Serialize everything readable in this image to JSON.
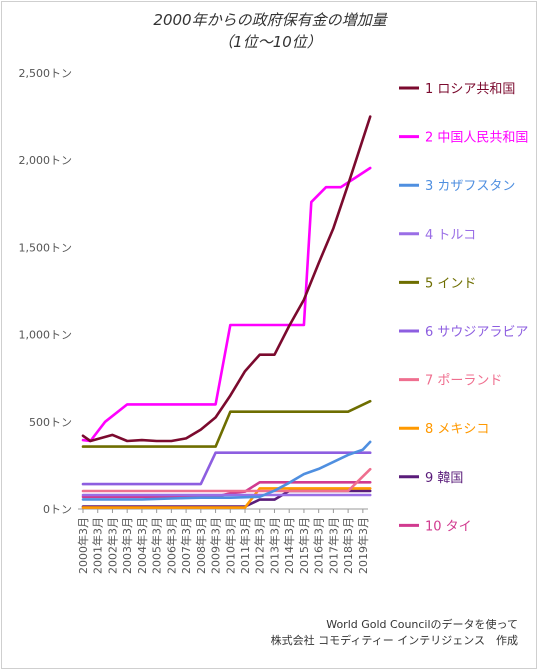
{
  "title_line1": "2000年からの政府保有金の増加量",
  "title_line2": "（1位～10位）",
  "credit_line1": "World Gold Councilのデータを使って",
  "credit_line2": "株式会社 コモディティー インテリジェンス　作成",
  "chart_data": {
    "type": "line",
    "title": "2000年からの政府保有金の増加量（1位～10位）",
    "ylim": [
      0,
      2500
    ],
    "y_ticks": [
      {
        "value": 0,
        "label": "0トン"
      },
      {
        "value": 500,
        "label": "500トン"
      },
      {
        "value": 1000,
        "label": "1,000トン"
      },
      {
        "value": 1500,
        "label": "1,500トン"
      },
      {
        "value": 2000,
        "label": "2,000トン"
      },
      {
        "value": 2500,
        "label": "2,500トン"
      }
    ],
    "x": [
      "2000年3月",
      "2001年3月",
      "2002年3月",
      "2003年3月",
      "2004年3月",
      "2005年3月",
      "2006年3月",
      "2007年3月",
      "2008年3月",
      "2009年3月",
      "2010年3月",
      "2011年3月",
      "2012年3月",
      "2013年3月",
      "2014年3月",
      "2015年3月",
      "2016年3月",
      "2017年3月",
      "2018年3月",
      "2019年3月"
    ],
    "grid": false,
    "legend_placement": "right",
    "series": [
      {
        "name": "1 ロシア共和国",
        "color": "#7b0a2e",
        "points": [
          [
            0,
            420
          ],
          [
            0.5,
            390
          ],
          [
            2,
            425
          ],
          [
            3,
            390
          ],
          [
            4,
            395
          ],
          [
            5,
            390
          ],
          [
            6,
            390
          ],
          [
            7,
            405
          ],
          [
            8,
            455
          ],
          [
            9,
            525
          ],
          [
            10,
            650
          ],
          [
            11,
            790
          ],
          [
            12,
            885
          ],
          [
            13,
            885
          ],
          [
            14,
            1050
          ],
          [
            15,
            1200
          ],
          [
            16,
            1410
          ],
          [
            17,
            1610
          ],
          [
            18,
            1860
          ],
          [
            19.5,
            2250
          ]
        ]
      },
      {
        "name": "2 中国人民共和国",
        "color": "#ff00ff",
        "points": [
          [
            0,
            395
          ],
          [
            0.5,
            390
          ],
          [
            1.5,
            500
          ],
          [
            3,
            600
          ],
          [
            4,
            600
          ],
          [
            5,
            600
          ],
          [
            6,
            600
          ],
          [
            7,
            600
          ],
          [
            8,
            600
          ],
          [
            9,
            600
          ],
          [
            10,
            1055
          ],
          [
            11,
            1055
          ],
          [
            12,
            1055
          ],
          [
            13,
            1055
          ],
          [
            14,
            1055
          ],
          [
            15,
            1055
          ],
          [
            15.5,
            1760
          ],
          [
            16.5,
            1845
          ],
          [
            17.5,
            1845
          ],
          [
            18.5,
            1900
          ],
          [
            19.5,
            1955
          ]
        ]
      },
      {
        "name": "3 カザフスタン",
        "color": "#4f8fe0",
        "points": [
          [
            0,
            55
          ],
          [
            2,
            55
          ],
          [
            4,
            55
          ],
          [
            6,
            60
          ],
          [
            8,
            65
          ],
          [
            10,
            65
          ],
          [
            12,
            70
          ],
          [
            13,
            105
          ],
          [
            14,
            150
          ],
          [
            15,
            200
          ],
          [
            16,
            230
          ],
          [
            17,
            270
          ],
          [
            18,
            310
          ],
          [
            19,
            340
          ],
          [
            19.5,
            385
          ]
        ]
      },
      {
        "name": "4 トルコ",
        "color": "#9a6ee6",
        "points": [
          [
            0,
            80
          ],
          [
            19.5,
            80
          ]
        ]
      },
      {
        "name": "5 インド",
        "color": "#6e6e00",
        "points": [
          [
            0,
            358
          ],
          [
            1,
            358
          ],
          [
            8,
            358
          ],
          [
            9,
            358
          ],
          [
            10,
            558
          ],
          [
            11,
            558
          ],
          [
            18,
            558
          ],
          [
            19.5,
            618
          ]
        ]
      },
      {
        "name": "6 サウジアラビア",
        "color": "#8d5ee0",
        "points": [
          [
            0,
            143
          ],
          [
            8,
            143
          ],
          [
            9,
            323
          ],
          [
            12,
            323
          ],
          [
            19.5,
            323
          ]
        ]
      },
      {
        "name": "7 ポーランド",
        "color": "#ef6f8f",
        "points": [
          [
            0,
            103
          ],
          [
            17,
            103
          ],
          [
            18,
            103
          ],
          [
            19.5,
            228
          ]
        ]
      },
      {
        "name": "8 メキシコ",
        "color": "#ff9900",
        "points": [
          [
            0,
            8
          ],
          [
            11,
            8
          ],
          [
            12,
            118
          ],
          [
            19.5,
            118
          ]
        ]
      },
      {
        "name": "9 韓国",
        "color": "#5a1c7a",
        "points": [
          [
            0,
            14
          ],
          [
            11,
            14
          ],
          [
            12,
            54
          ],
          [
            13,
            54
          ],
          [
            14,
            104
          ],
          [
            19.5,
            104
          ]
        ]
      },
      {
        "name": "10 タイ",
        "color": "#d13a8f",
        "points": [
          [
            0,
            70
          ],
          [
            9,
            70
          ],
          [
            10,
            90
          ],
          [
            11,
            100
          ],
          [
            12,
            153
          ],
          [
            19.5,
            153
          ]
        ]
      }
    ]
  }
}
